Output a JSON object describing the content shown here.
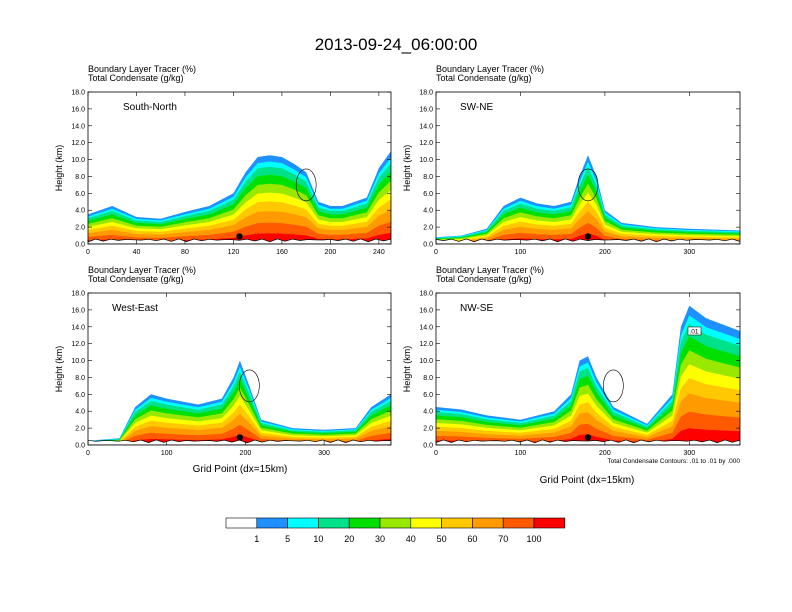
{
  "title": "2013-09-24_06:00:00",
  "panel_title_line1": "Boundary Layer Tracer    (%)",
  "panel_title_line2": "Total Condensate   (g/kg)",
  "y_axis_label": "Height (km)",
  "x_axis_label": "Grid Point (dx=15km)",
  "contour_note": "Total Condensate Contours: .01 to .01 by .000",
  "contour_label": ".01",
  "chart_data": [
    {
      "type": "heatmap",
      "label": "South-North",
      "xlim": [
        0,
        250
      ],
      "ylim": [
        0,
        18
      ],
      "x_ticks": [
        "0",
        "40",
        "80",
        "120",
        "160",
        "200",
        "240"
      ],
      "y_ticks": [
        "0.0",
        "2.0",
        "4.0",
        "6.0",
        "8.0",
        "10.0",
        "12.0",
        "14.0",
        "16.0",
        "18.0"
      ],
      "marker_x": 125,
      "tracer_core_x": [
        0,
        20,
        40,
        60,
        80,
        100,
        120,
        130,
        140,
        150,
        160,
        170,
        180,
        190,
        200,
        210,
        220,
        230,
        240,
        250
      ],
      "tracer_top_km": [
        3.5,
        4.5,
        3.2,
        3.0,
        3.8,
        4.5,
        6.0,
        8.5,
        10.3,
        10.5,
        10.3,
        9.5,
        8.5,
        5.0,
        4.5,
        4.5,
        5.0,
        5.5,
        9.0,
        11.0
      ]
    },
    {
      "type": "heatmap",
      "label": "SW-NE",
      "xlim": [
        0,
        360
      ],
      "ylim": [
        0,
        18
      ],
      "x_ticks": [
        "0",
        "100",
        "200",
        "300"
      ],
      "y_ticks": [
        "0.0",
        "2.0",
        "4.0",
        "6.0",
        "8.0",
        "10.0",
        "12.0",
        "14.0",
        "16.0",
        "18.0"
      ],
      "marker_x": 180,
      "tracer_core_x": [
        0,
        30,
        60,
        80,
        100,
        120,
        140,
        160,
        170,
        180,
        190,
        200,
        220,
        260,
        300,
        360
      ],
      "tracer_top_km": [
        0.8,
        1.0,
        1.8,
        4.5,
        5.5,
        4.8,
        4.5,
        5.0,
        8.0,
        10.5,
        8.0,
        4.0,
        2.5,
        2.0,
        1.8,
        1.6
      ]
    },
    {
      "type": "heatmap",
      "label": "West-East",
      "xlim": [
        0,
        385
      ],
      "ylim": [
        0,
        18
      ],
      "x_ticks": [
        "0",
        "100",
        "200",
        "300"
      ],
      "y_ticks": [
        "0.0",
        "2.0",
        "4.0",
        "6.0",
        "8.0",
        "10.0",
        "12.0",
        "14.0",
        "16.0",
        "18.0"
      ],
      "marker_x": 193,
      "tracer_core_x": [
        0,
        40,
        60,
        80,
        100,
        140,
        170,
        185,
        193,
        205,
        220,
        260,
        300,
        340,
        360,
        385
      ],
      "tracer_top_km": [
        0.5,
        0.8,
        4.5,
        6.0,
        5.5,
        4.8,
        5.5,
        8.0,
        10.0,
        7.0,
        3.0,
        2.0,
        1.8,
        2.0,
        4.5,
        6.0
      ]
    },
    {
      "type": "heatmap",
      "label": "NW-SE",
      "xlim": [
        0,
        360
      ],
      "ylim": [
        0,
        18
      ],
      "x_ticks": [
        "0",
        "100",
        "200",
        "300"
      ],
      "y_ticks": [
        "0.0",
        "2.0",
        "4.0",
        "6.0",
        "8.0",
        "10.0",
        "12.0",
        "14.0",
        "16.0",
        "18.0"
      ],
      "marker_x": 180,
      "tracer_core_x": [
        0,
        30,
        60,
        100,
        140,
        160,
        170,
        180,
        190,
        210,
        250,
        280,
        290,
        300,
        320,
        360
      ],
      "tracer_top_km": [
        4.5,
        4.2,
        3.5,
        3.0,
        4.0,
        6.0,
        10.0,
        10.5,
        8.0,
        4.5,
        2.5,
        6.0,
        14.0,
        16.5,
        15.0,
        13.5
      ]
    }
  ],
  "colorbar": {
    "labels": [
      "1",
      "5",
      "10",
      "20",
      "30",
      "40",
      "50",
      "60",
      "70",
      "100"
    ],
    "colors": [
      "#ffffff",
      "#1e90ff",
      "#00ffff",
      "#00e28a",
      "#00e000",
      "#99e800",
      "#ffff00",
      "#ffc800",
      "#ff9a00",
      "#ff5a00",
      "#ff0000"
    ]
  }
}
